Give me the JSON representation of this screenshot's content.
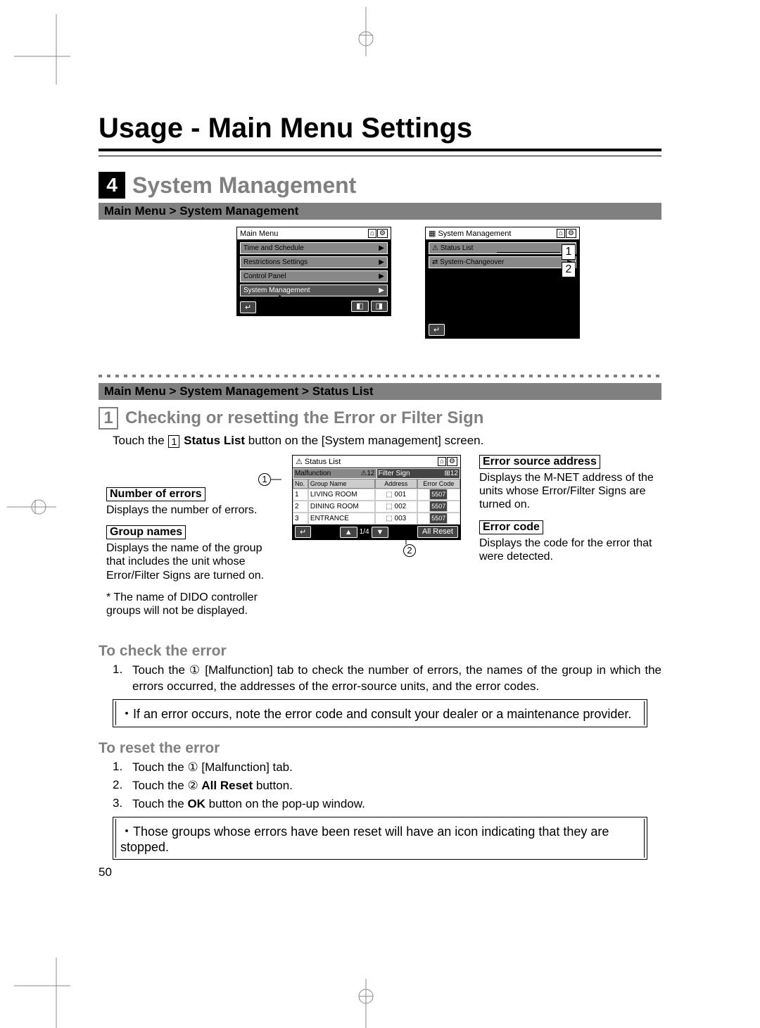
{
  "page": {
    "title": "Usage - Main Menu Settings",
    "page_number": "50"
  },
  "section4": {
    "num": "4",
    "title": "System Management",
    "breadcrumb1": "Main Menu > System Management",
    "breadcrumb2": "Main Menu > System Management > Status List"
  },
  "device_mainmenu": {
    "title": "Main Menu",
    "items": [
      "Time and Schedule",
      "Restrictions Settings",
      "Control Panel",
      "System Management"
    ]
  },
  "device_sysmgmt": {
    "title": "System Management",
    "items": [
      "Status List",
      "System-Changeover"
    ]
  },
  "callouts_top": {
    "c1": "1",
    "c2": "2"
  },
  "sub1": {
    "num": "1",
    "title": "Checking or resetting the Error or Filter Sign",
    "instruction_pre": "Touch the ",
    "instruction_boxed": "1",
    "instruction_mid": " Status List",
    "instruction_post": " button on the [System management] screen."
  },
  "status_screen": {
    "title": "Status List",
    "tab_malfunction": "Malfunction",
    "tab_malfunction_badge": "⚠12",
    "tab_filter": "Filter Sign",
    "tab_filter_badge": "⊞12",
    "head_no": "No.",
    "head_group": "Group Name",
    "head_address": "Address",
    "head_error": "Error Code",
    "rows": [
      {
        "no": "1",
        "group": "LIVING ROOM",
        "addr": "001",
        "code": "5507"
      },
      {
        "no": "2",
        "group": "DINING ROOM",
        "addr": "002",
        "code": "5507"
      },
      {
        "no": "3",
        "group": "ENTRANCE",
        "addr": "003",
        "code": "5507"
      }
    ],
    "paging": "1/4",
    "allreset": "All Reset"
  },
  "annotations": {
    "num_errors_label": "Number of errors",
    "num_errors_text": "Displays the number of errors.",
    "group_names_label": "Group names",
    "group_names_text": "Displays the name of the group that includes the unit whose Error/Filter Signs are turned on.",
    "group_names_note": "* The name of DIDO controller groups will not be displayed.",
    "err_src_label": "Error source address",
    "err_src_text": "Displays the M-NET address of the units whose Error/Filter Signs are turned on.",
    "err_code_label": "Error code",
    "err_code_text": "Displays the code for the error that were detected.",
    "circ1": "1",
    "circ2": "2"
  },
  "check": {
    "heading": "To check the error",
    "step1": "Touch the ① [Malfunction] tab to check the number of errors, the names of the group in which the errors occurred, the addresses of the error-source units, and the error codes.",
    "note": "・If an error occurs, note the error code and consult your dealer or a maintenance provider."
  },
  "reset": {
    "heading": "To reset the error",
    "s1": "Touch the ① [Malfunction] tab.",
    "s2_pre": "Touch the ② ",
    "s2_bold": "All Reset",
    "s2_post": " button.",
    "s3_pre": "Touch the ",
    "s3_bold": "OK",
    "s3_post": " button on the pop-up window.",
    "note": "・Those groups whose errors have been reset will have an icon indicating that they are stopped."
  }
}
